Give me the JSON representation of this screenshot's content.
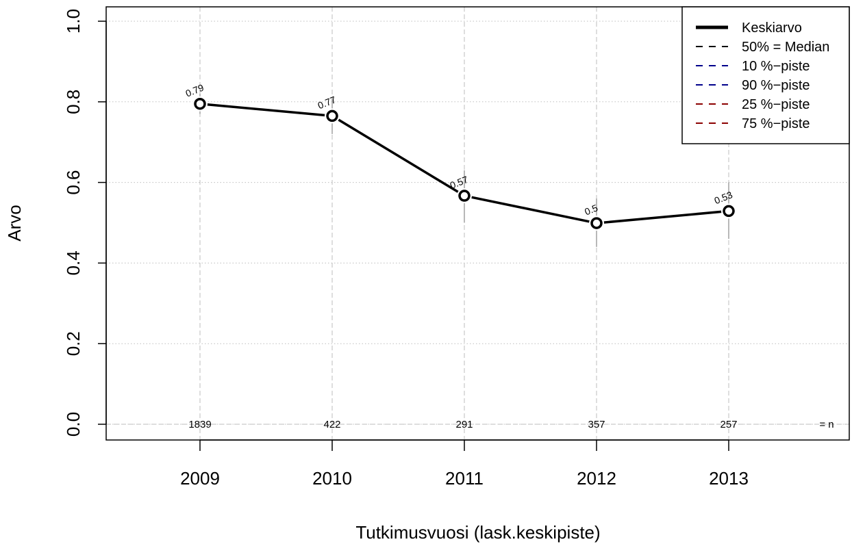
{
  "chart_data": {
    "type": "line",
    "xlabel": "Tutkimusvuosi (lask.keskipiste)",
    "ylabel": "Arvo",
    "ylim": [
      0,
      1
    ],
    "yticks": [
      "0.0",
      "0.2",
      "0.4",
      "0.6",
      "0.8",
      "1.0"
    ],
    "categories": [
      "2009",
      "2010",
      "2011",
      "2012",
      "2013"
    ],
    "series": [
      {
        "name": "Keskiarvo",
        "values": [
          0.795,
          0.765,
          0.567,
          0.499,
          0.529
        ],
        "labels": [
          "0.79",
          "0.77",
          "0.57",
          "0.5",
          "0.53"
        ],
        "color": "#000000"
      }
    ],
    "range_bars": [
      {
        "category": "2009",
        "low": 0.77,
        "high": 0.82
      },
      {
        "category": "2010",
        "low": 0.72,
        "high": 0.81
      },
      {
        "category": "2011",
        "low": 0.5,
        "high": 0.63
      },
      {
        "category": "2012",
        "low": 0.44,
        "high": 0.56
      },
      {
        "category": "2013",
        "low": 0.46,
        "high": 0.6
      }
    ],
    "n_values": [
      "1839",
      "422",
      "291",
      "357",
      "257"
    ],
    "n_label": "= n",
    "legend": {
      "position": "top-right",
      "entries": [
        {
          "label": "Keskiarvo",
          "color": "#000000",
          "style": "solid-thick"
        },
        {
          "label": "50% = Median",
          "color": "#000000",
          "style": "dashed"
        },
        {
          "label": "10 %−piste",
          "color": "#00008b",
          "style": "dashed"
        },
        {
          "label": "90 %−piste",
          "color": "#00008b",
          "style": "dashed"
        },
        {
          "label": "25 %−piste",
          "color": "#8b0000",
          "style": "dashed"
        },
        {
          "label": "75 %−piste",
          "color": "#8b0000",
          "style": "dashed"
        }
      ]
    },
    "grid": true
  }
}
